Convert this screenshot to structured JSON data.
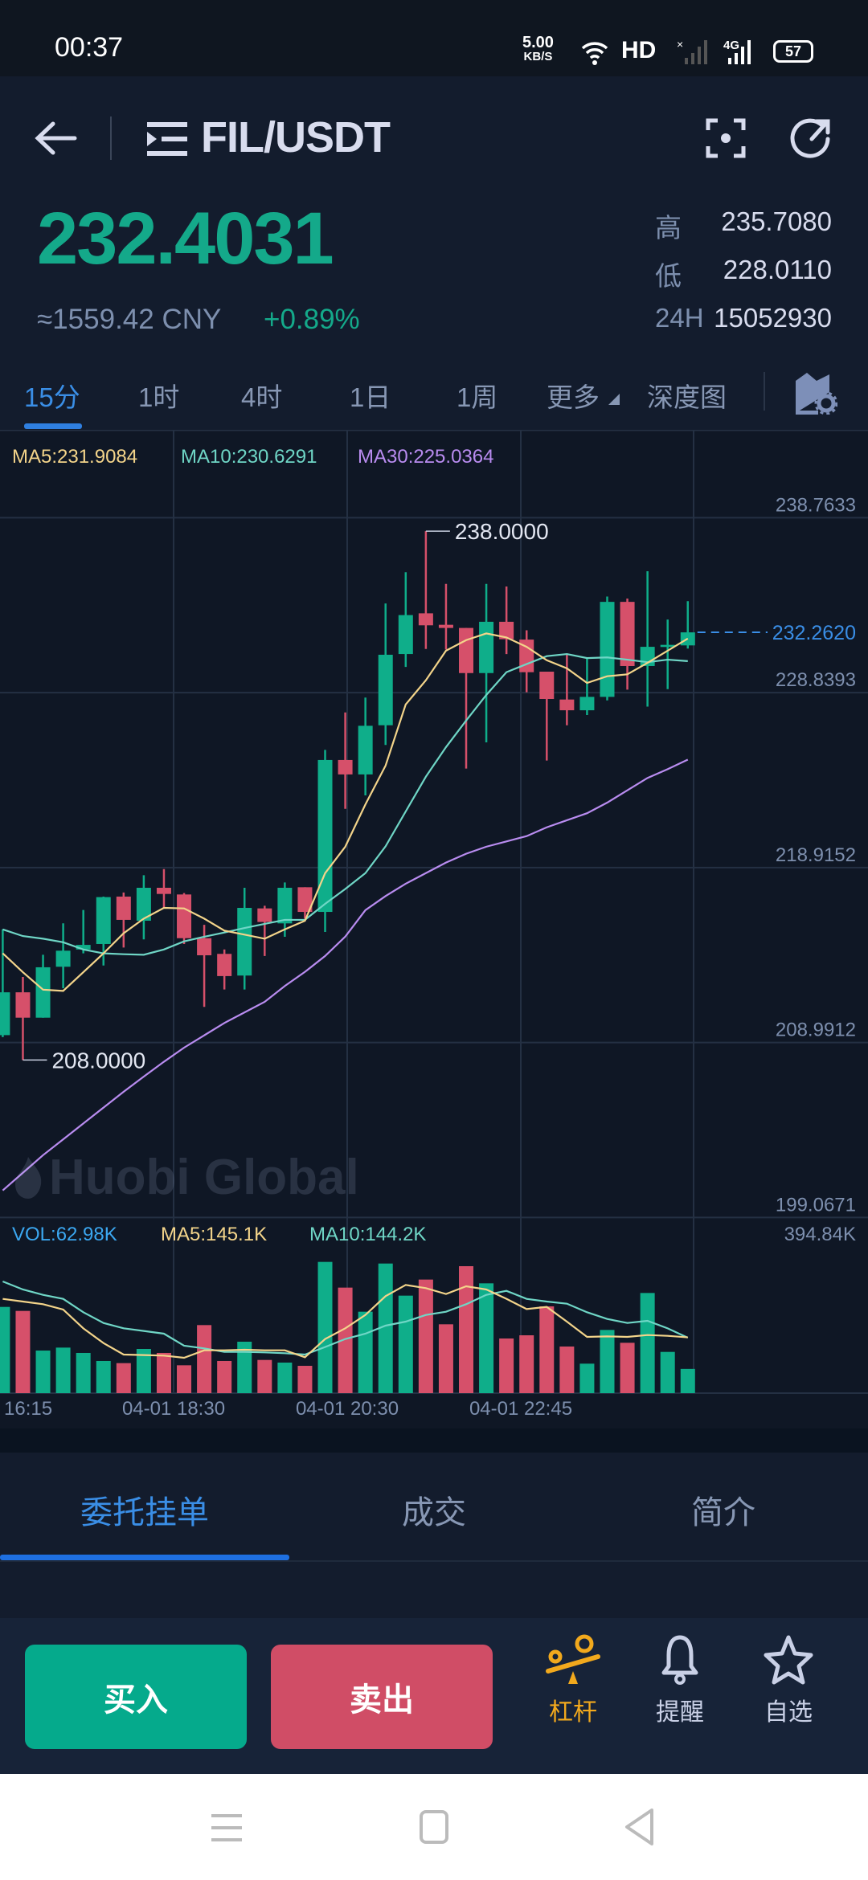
{
  "status_bar": {
    "time": "00:37",
    "net_speed": "5.00",
    "net_unit": "KB/S",
    "hd": "HD",
    "network": "4G",
    "battery": "57"
  },
  "header": {
    "pair": "FIL/USDT"
  },
  "ticker": {
    "last_price": "232.4031",
    "cny": "≈1559.42 CNY",
    "change": "+0.89%",
    "high_label": "高",
    "high": "235.7080",
    "low_label": "低",
    "low": "228.0110",
    "vol_label": "24H",
    "vol": "15052930"
  },
  "interval_tabs": [
    {
      "label": "15分",
      "active": true
    },
    {
      "label": "1时"
    },
    {
      "label": "4时"
    },
    {
      "label": "1日"
    },
    {
      "label": "1周"
    },
    {
      "label": "更多"
    },
    {
      "label": "深度图"
    }
  ],
  "colors": {
    "up": "#0fae8a",
    "down": "#d6506a",
    "ma5": "#f3d48a",
    "ma10": "#6fd6c6",
    "ma30": "#b98cf0",
    "vol": "#3ba7f0",
    "accent": "#3a8ee6"
  },
  "chart_data": {
    "type": "candlestick",
    "ma_labels": {
      "ma5": "MA5:231.9084",
      "ma10": "MA10:230.6291",
      "ma30": "MA30:225.0364"
    },
    "y_ticks": [
      "238.7633",
      "228.8393",
      "218.9152",
      "208.9912",
      "199.0671"
    ],
    "y_tick_values": [
      238.7633,
      228.8393,
      218.9152,
      208.9912,
      199.0671
    ],
    "x_ticks": [
      "16:15",
      "04-01 18:30",
      "04-01 20:30",
      "04-01 22:45"
    ],
    "current_price": "232.2620",
    "current_price_value": 232.262,
    "max_marker": "238.0000",
    "min_marker": "208.0000",
    "watermark": "Huobi Global",
    "candles_ohlc": [
      [
        209.41,
        215.41,
        209.3,
        211.84
      ],
      [
        211.84,
        212.71,
        208.0,
        210.4
      ],
      [
        210.4,
        213.97,
        210.4,
        213.26
      ],
      [
        213.29,
        215.75,
        212.07,
        214.2
      ],
      [
        214.27,
        216.51,
        214.05,
        214.53
      ],
      [
        214.58,
        217.27,
        213.36,
        217.24
      ],
      [
        217.27,
        217.5,
        214.38,
        215.95
      ],
      [
        215.9,
        218.48,
        214.84,
        217.77
      ],
      [
        217.77,
        218.83,
        216.63,
        217.42
      ],
      [
        217.39,
        217.47,
        214.58,
        214.91
      ],
      [
        214.91,
        215.67,
        211.01,
        213.94
      ],
      [
        214.02,
        214.27,
        212.0,
        212.76
      ],
      [
        212.79,
        217.77,
        212.0,
        216.63
      ],
      [
        216.6,
        216.75,
        213.9,
        215.83
      ],
      [
        215.75,
        218.07,
        214.99,
        217.77
      ],
      [
        217.8,
        217.8,
        216.02,
        216.4
      ],
      [
        216.4,
        225.59,
        215.26,
        225.02
      ],
      [
        225.02,
        227.72,
        222.25,
        224.2
      ],
      [
        224.2,
        228.56,
        223.01,
        226.96
      ],
      [
        226.99,
        233.9,
        225.87,
        230.99
      ],
      [
        231.03,
        235.67,
        230.3,
        233.24
      ],
      [
        233.34,
        238.0,
        231.32,
        232.66
      ],
      [
        232.69,
        235.01,
        231.29,
        232.51
      ],
      [
        232.51,
        232.51,
        224.53,
        229.95
      ],
      [
        229.95,
        235.01,
        226.02,
        232.86
      ],
      [
        232.86,
        234.86,
        231.03,
        231.87
      ],
      [
        231.85,
        232.38,
        228.86,
        230.0
      ],
      [
        230.03,
        230.03,
        224.99,
        228.48
      ],
      [
        228.45,
        230.99,
        226.99,
        227.84
      ],
      [
        227.84,
        230.84,
        227.57,
        228.6
      ],
      [
        228.6,
        234.29,
        228.4,
        233.99
      ],
      [
        233.99,
        234.18,
        229.01,
        230.35
      ],
      [
        230.35,
        235.73,
        228.05,
        231.44
      ],
      [
        231.43,
        232.99,
        229.04,
        231.55
      ],
      [
        231.52,
        234.03,
        231.34,
        232.26
      ]
    ],
    "ma5": [
      214.05,
      212.98,
      211.99,
      211.92,
      212.98,
      214.05,
      215.19,
      216.02,
      216.63,
      216.6,
      216.02,
      215.34,
      215.11,
      214.88,
      215.41,
      215.9,
      218.6,
      220.1,
      222.5,
      224.7,
      228.17,
      229.54,
      231.22,
      231.82,
      232.2,
      231.97,
      231.44,
      230.68,
      230.22,
      229.39,
      229.77,
      229.88,
      230.53,
      231.22,
      231.91
    ],
    "ma10": [
      215.41,
      215.03,
      214.88,
      214.68,
      214.27,
      214.05,
      214.0,
      213.97,
      214.27,
      214.73,
      214.99,
      215.23,
      215.49,
      215.72,
      215.95,
      215.95,
      216.86,
      217.7,
      218.6,
      220.12,
      222.1,
      224.07,
      225.75,
      227.26,
      228.71,
      230.0,
      230.46,
      230.91,
      231.03,
      230.8,
      230.84,
      230.71,
      230.57,
      230.71,
      230.63
    ],
    "ma30": [
      200.6,
      201.6,
      202.6,
      203.5,
      204.4,
      205.3,
      206.2,
      207.06,
      207.9,
      208.7,
      209.4,
      210.1,
      210.7,
      211.3,
      212.2,
      213.0,
      213.9,
      215.0,
      216.5,
      217.3,
      218.0,
      218.6,
      219.2,
      219.7,
      220.1,
      220.4,
      220.7,
      221.2,
      221.6,
      222.0,
      222.6,
      223.3,
      224.0,
      224.5,
      225.04
    ],
    "volume": {
      "labels": {
        "vol": "VOL:62.98K",
        "ma5": "MA5:145.1K",
        "ma10": "MA10:144.2K"
      },
      "max_label": "394.84K",
      "max_value_k": 394.84,
      "values_k": [
        224.2,
        213.8,
        110.7,
        118.4,
        104.5,
        83.6,
        78.0,
        114.9,
        104.5,
        72.4,
        176.9,
        83.6,
        133.7,
        86.3,
        79.4,
        71.0,
        341.2,
        274.4,
        211.7,
        337.0,
        253.5,
        295.3,
        179.0,
        330.1,
        285.5,
        142.1,
        150.4,
        225.6,
        121.2,
        76.6,
        164.3,
        130.9,
        260.4,
        107.2,
        62.98
      ],
      "ma5_k": [
        245.1,
        238.2,
        231.2,
        217.3,
        168.5,
        130.2,
        100.3,
        98.9,
        97.5,
        91.9,
        111.4,
        111.4,
        112.8,
        111.4,
        111.4,
        93.3,
        140.7,
        168.5,
        203.3,
        252.1,
        281.3,
        273.0,
        257.7,
        277.8,
        269.5,
        245.1,
        218.7,
        224.2,
        185.9,
        146.2,
        147.6,
        146.2,
        151.1,
        149.0,
        145.1
      ],
      "ma10_k": [
        290.4,
        269.5,
        255.6,
        245.1,
        210.3,
        182.4,
        168.5,
        161.6,
        154.6,
        123.3,
        116.3,
        107.2,
        107.2,
        105.9,
        103.8,
        100.3,
        119.8,
        140.7,
        154.6,
        175.5,
        185.9,
        203.3,
        211.7,
        231.2,
        255.6,
        266.0,
        245.1,
        238.2,
        232.6,
        210.3,
        192.9,
        182.4,
        188.0,
        168.5,
        144.2
      ]
    }
  },
  "bottom_tabs": [
    {
      "label": "委托挂单",
      "active": true
    },
    {
      "label": "成交"
    },
    {
      "label": "简介"
    }
  ],
  "actions": {
    "buy": "买入",
    "sell": "卖出",
    "leverage": "杠杆",
    "alert": "提醒",
    "favorite": "自选"
  }
}
